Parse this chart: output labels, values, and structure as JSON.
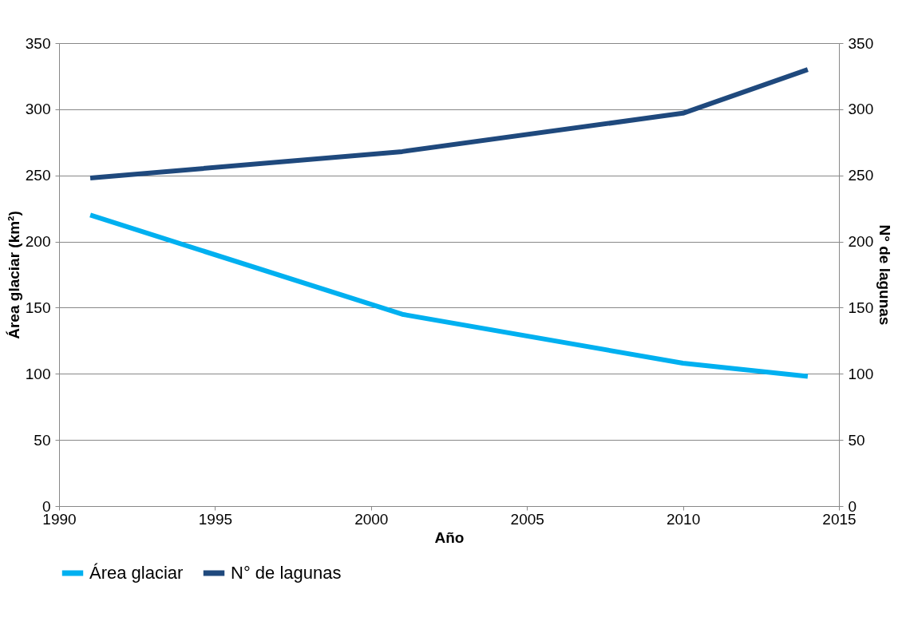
{
  "chart_data": {
    "type": "line",
    "xlabel": "Año",
    "ylabel": "Área glaciar (km²)",
    "y2label": "N° de lagunas",
    "x": [
      1991,
      2001,
      2010,
      2014
    ],
    "series": [
      {
        "name": "Área glaciar",
        "color": "#00b0f0",
        "values": [
          220,
          145,
          108,
          98
        ]
      },
      {
        "name": "N° de lagunas",
        "color": "#1f497d",
        "values": [
          248,
          268,
          297,
          330
        ],
        "axis": "y2"
      }
    ],
    "xlim": [
      1990,
      2015
    ],
    "xticks": [
      1990,
      1995,
      2000,
      2005,
      2010,
      2015
    ],
    "ylim": [
      0,
      350
    ],
    "yticks": [
      0,
      50,
      100,
      150,
      200,
      250,
      300,
      350
    ],
    "y2lim": [
      0,
      350
    ],
    "y2ticks": [
      0,
      50,
      100,
      150,
      200,
      250,
      300,
      350
    ],
    "grid": "y",
    "legend": "bottom",
    "marker": "none",
    "line_style": "solid"
  }
}
